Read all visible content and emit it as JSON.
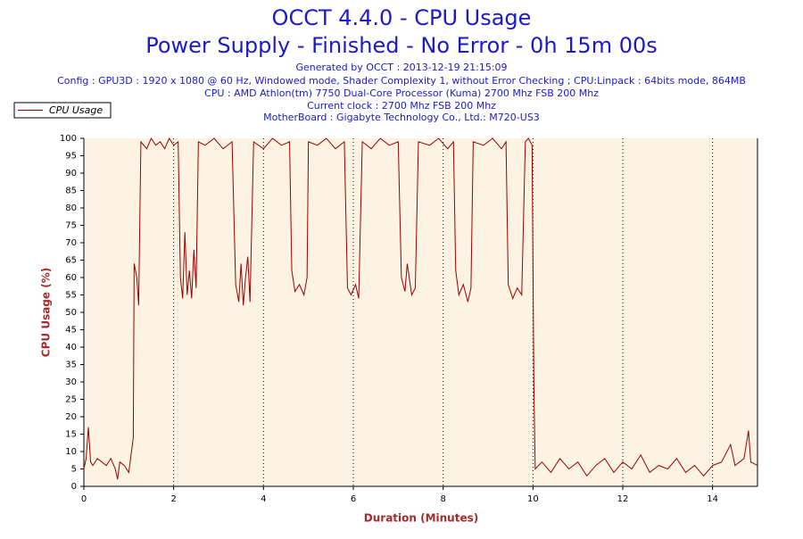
{
  "chart_data": {
    "type": "line",
    "title": "OCCT 4.4.0 - CPU Usage",
    "subtitle": "Power Supply - Finished - No Error - 0h 15m 00s",
    "annotations": [
      "Generated by OCCT : 2013-12-19 21:15:09",
      "Config : GPU3D : 1920 x 1080 @ 60 Hz, Windowed mode, Shader Complexity 1, without Error Checking ; CPU:Linpack : 64bits mode, 864MB",
      "CPU : AMD Athlon(tm) 7750 Dual-Core Processor (Kuma) 2700 Mhz FSB 200 Mhz",
      "Current clock : 2700 Mhz FSB 200 Mhz",
      "MotherBoard : Gigabyte Technology Co., Ltd.: M720-US3"
    ],
    "x_label": "Duration (Minutes)",
    "y_label": "CPU Usage (%)",
    "x": [
      0,
      0.05,
      0.1,
      0.15,
      0.2,
      0.3,
      0.4,
      0.5,
      0.6,
      0.7,
      0.75,
      0.8,
      0.9,
      1.0,
      1.05,
      1.1,
      1.12,
      1.18,
      1.22,
      1.27,
      1.4,
      1.5,
      1.6,
      1.7,
      1.8,
      1.9,
      2.0,
      2.1,
      2.15,
      2.2,
      2.25,
      2.3,
      2.35,
      2.4,
      2.45,
      2.5,
      2.55,
      2.7,
      2.9,
      3.1,
      3.3,
      3.38,
      3.45,
      3.5,
      3.55,
      3.6,
      3.65,
      3.7,
      3.78,
      4.0,
      4.2,
      4.4,
      4.58,
      4.63,
      4.7,
      4.8,
      4.9,
      4.97,
      5.0,
      5.2,
      5.4,
      5.6,
      5.8,
      5.87,
      5.95,
      6.05,
      6.12,
      6.2,
      6.4,
      6.6,
      6.8,
      7.0,
      7.07,
      7.15,
      7.2,
      7.3,
      7.38,
      7.45,
      7.7,
      7.9,
      8.1,
      8.23,
      8.28,
      8.35,
      8.45,
      8.55,
      8.62,
      8.67,
      8.9,
      9.1,
      9.3,
      9.4,
      9.45,
      9.55,
      9.65,
      9.75,
      9.83,
      9.9,
      9.98,
      10.02,
      10.05,
      10.2,
      10.4,
      10.6,
      10.8,
      11.0,
      11.2,
      11.4,
      11.6,
      11.8,
      12.0,
      12.2,
      12.4,
      12.6,
      12.8,
      13.0,
      13.2,
      13.4,
      13.6,
      13.8,
      14.0,
      14.2,
      14.4,
      14.5,
      14.6,
      14.7,
      14.8,
      14.85,
      15
    ],
    "series": [
      {
        "name": "CPU Usage",
        "color": "#990000",
        "values": [
          5,
          8,
          17,
          7,
          6,
          8,
          7,
          6,
          8,
          5,
          2,
          7,
          6,
          4,
          9,
          14,
          64,
          60,
          52,
          99,
          97,
          100,
          98,
          99,
          97,
          100,
          98,
          99,
          60,
          54,
          73,
          55,
          62,
          54,
          68,
          57,
          99,
          98,
          100,
          97,
          99,
          58,
          53,
          64,
          52,
          60,
          66,
          53,
          99,
          97,
          100,
          98,
          99,
          62,
          56,
          58,
          55,
          60,
          99,
          98,
          100,
          97,
          99,
          57,
          55,
          58,
          54,
          99,
          97,
          100,
          98,
          99,
          60,
          56,
          64,
          55,
          57,
          99,
          98,
          100,
          97,
          99,
          62,
          55,
          58,
          53,
          57,
          99,
          98,
          100,
          97,
          99,
          58,
          54,
          57,
          55,
          99,
          100,
          98,
          30,
          5,
          7,
          4,
          8,
          5,
          7,
          3,
          6,
          8,
          4,
          7,
          5,
          9,
          4,
          6,
          5,
          8,
          4,
          6,
          3,
          6,
          7,
          12,
          6,
          7,
          8,
          16,
          7,
          6
        ]
      }
    ],
    "xlim": [
      0,
      15
    ],
    "xticks": [
      0,
      2,
      4,
      6,
      8,
      10,
      12,
      14
    ],
    "ylim": [
      0,
      100
    ],
    "yticks": [
      0,
      5,
      10,
      15,
      20,
      25,
      30,
      35,
      40,
      45,
      50,
      55,
      60,
      65,
      70,
      75,
      80,
      85,
      90,
      95,
      100
    ],
    "grid": true,
    "legend": "top-left"
  }
}
